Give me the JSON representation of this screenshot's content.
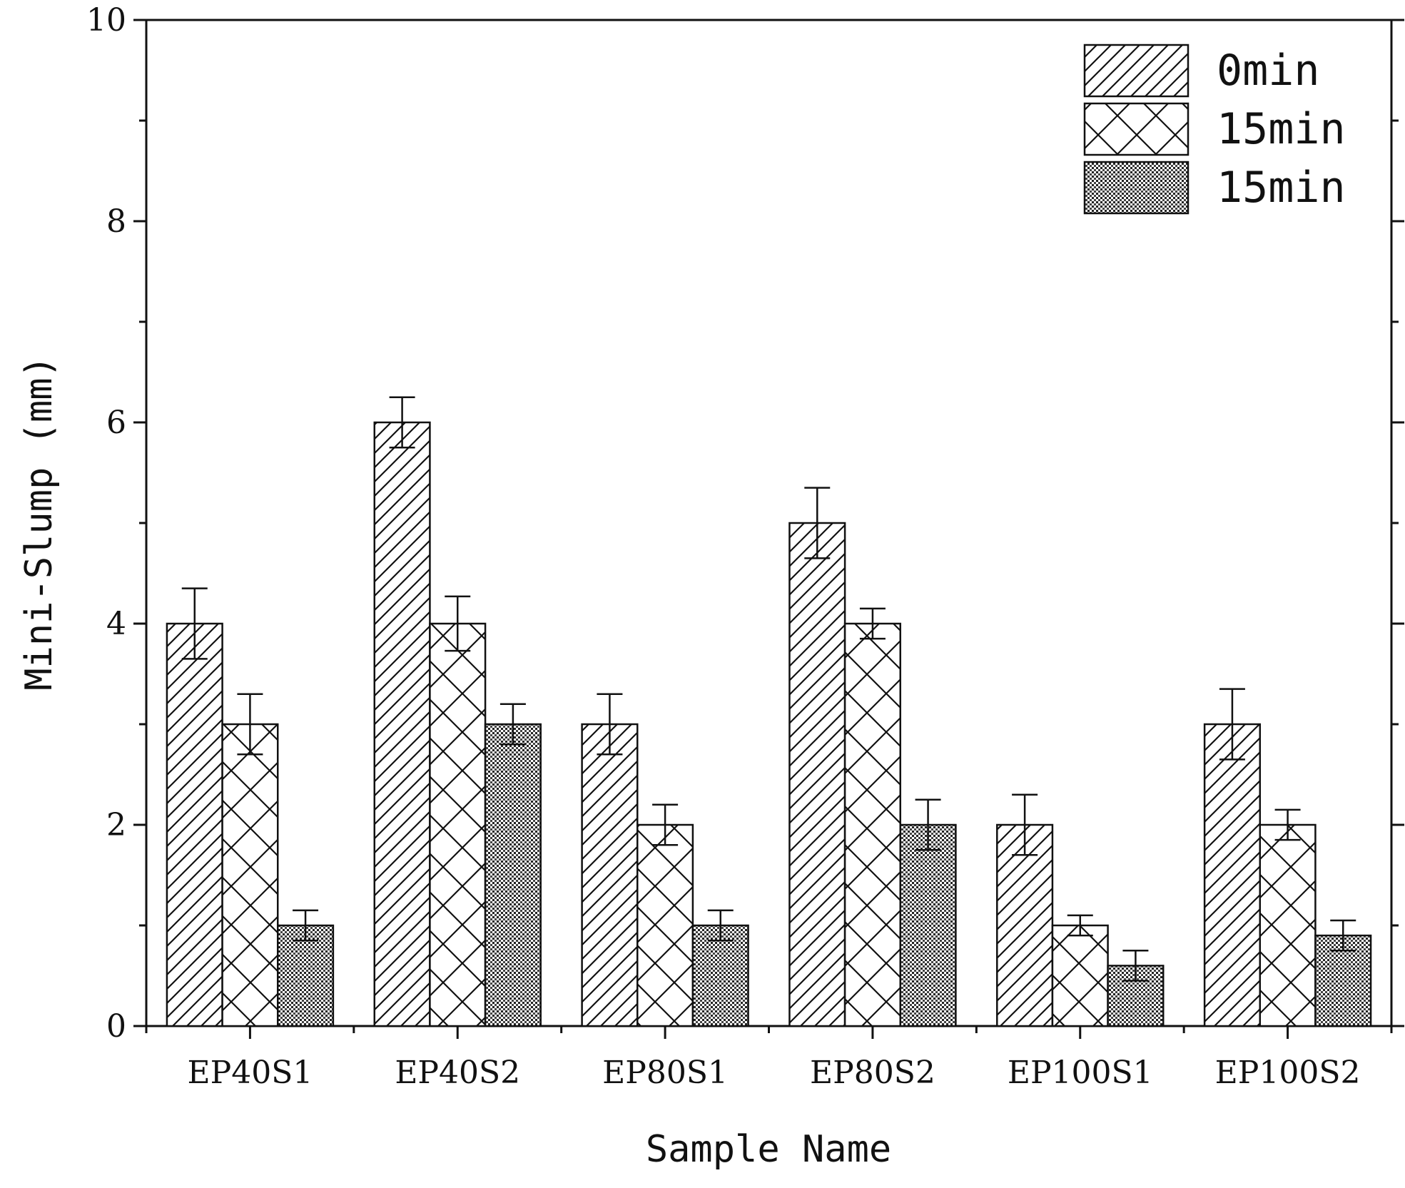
{
  "chart_data": {
    "type": "bar",
    "title": "",
    "xlabel": "Sample Name",
    "ylabel": "Mini-Slump (mm)",
    "ylim": [
      0,
      10
    ],
    "yticks": [
      "0",
      "2",
      "4",
      "6",
      "8",
      "10"
    ],
    "categories": [
      "EP40S1",
      "EP40S2",
      "EP80S1",
      "EP80S2",
      "EP100S1",
      "EP100S2"
    ],
    "legend_position": "top-right",
    "series": [
      {
        "name": "0min",
        "pattern": "diagonal-hatch",
        "values": [
          4.0,
          6.0,
          3.0,
          5.0,
          2.0,
          3.0
        ],
        "errors": [
          0.35,
          0.25,
          0.3,
          0.35,
          0.3,
          0.35
        ]
      },
      {
        "name": "15min",
        "pattern": "cross-hatch",
        "values": [
          3.0,
          4.0,
          2.0,
          4.0,
          1.0,
          2.0
        ],
        "errors": [
          0.3,
          0.27,
          0.2,
          0.15,
          0.1,
          0.15
        ]
      },
      {
        "name": "15min",
        "pattern": "dense-dots",
        "values": [
          1.0,
          3.0,
          1.0,
          2.0,
          0.6,
          0.9
        ],
        "errors": [
          0.15,
          0.2,
          0.15,
          0.25,
          0.15,
          0.15
        ]
      }
    ],
    "colors": {
      "stroke": "#111111",
      "fill": "#ffffff"
    }
  }
}
